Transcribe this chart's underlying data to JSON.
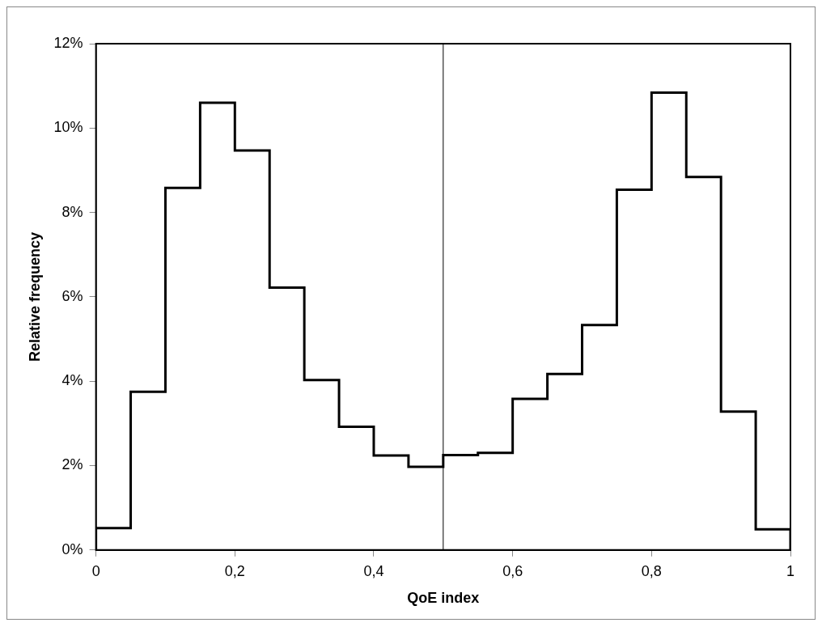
{
  "chart_data": {
    "type": "histogram",
    "xlabel": "QoE index",
    "ylabel": "Relative frequency",
    "bins": [
      0,
      0.05,
      0.1,
      0.15,
      0.2,
      0.25,
      0.3,
      0.35,
      0.4,
      0.45,
      0.5,
      0.55,
      0.6,
      0.65,
      0.7,
      0.75,
      0.8,
      0.85,
      0.9,
      0.95,
      1
    ],
    "values": [
      0.52,
      3.75,
      8.58,
      10.6,
      9.47,
      6.22,
      4.03,
      2.92,
      2.24,
      1.97,
      2.25,
      2.3,
      3.58,
      4.17,
      5.33,
      8.54,
      10.84,
      8.84,
      3.28,
      0.49
    ],
    "color": "#000000",
    "xlim": [
      0,
      1
    ],
    "xticks": [
      0,
      {
        "value": 0.2,
        "label": "0,2"
      },
      {
        "value": 0.4,
        "label": "0,4"
      },
      {
        "value": 0.6,
        "label": "0,6"
      },
      {
        "value": 0.8,
        "label": "0,8"
      },
      1
    ],
    "ylim": [
      0,
      12
    ],
    "yticks": [
      {
        "value": 0,
        "label": "0%"
      },
      {
        "value": 2,
        "label": "2%"
      },
      {
        "value": 4,
        "label": "4%"
      },
      {
        "value": 6,
        "label": "6%"
      },
      {
        "value": 8,
        "label": "8%"
      },
      {
        "value": 10,
        "label": "10%"
      },
      {
        "value": 12,
        "label": "12%"
      }
    ],
    "ref_lines": [
      {
        "axis": "x",
        "value": 0.5,
        "color": "#000000"
      }
    ],
    "grid": false,
    "legend": false
  }
}
